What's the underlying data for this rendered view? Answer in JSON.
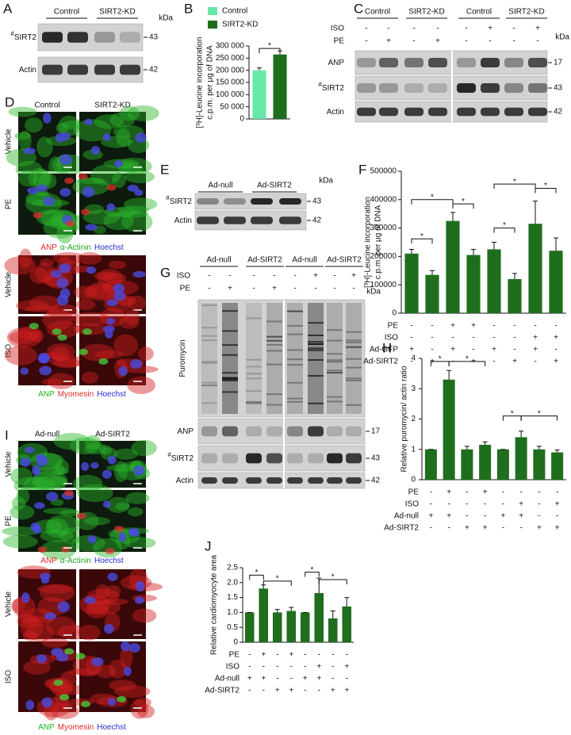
{
  "panel_A": {
    "letter": "A",
    "groups": [
      "Control",
      "SIRT2-KD"
    ],
    "unit": "kDa",
    "rows": [
      {
        "sup": "#",
        "label": "SIRT2",
        "mw": "43"
      },
      {
        "label": "Actin",
        "mw": "42"
      }
    ]
  },
  "panel_C": {
    "letter": "C",
    "groups": [
      "Control",
      "SIRT2-KD",
      "Control",
      "SIRT2-KD"
    ],
    "unit": "kDa",
    "treatments": [
      {
        "label": "ISO",
        "marks": [
          "-",
          "-",
          "-",
          "-",
          "-",
          "+",
          "-",
          "+"
        ]
      },
      {
        "label": "PE",
        "marks": [
          "-",
          "+",
          "-",
          "+",
          "-",
          "-",
          "-",
          "-"
        ]
      }
    ],
    "rows": [
      {
        "label": "ANP",
        "mw": "17"
      },
      {
        "sup": "#",
        "label": "SIRT2",
        "mw": "43"
      },
      {
        "label": "Actin",
        "mw": "42"
      }
    ]
  },
  "panel_D": {
    "letter": "D",
    "columns": [
      "Control",
      "SIRT2-KD"
    ],
    "rows": [
      "Vehicle",
      "PE",
      "Vehicle",
      "ISO"
    ],
    "stains": [
      [
        {
          "text": "ANP",
          "color": "#e02828"
        },
        {
          "text": "α-Actinin",
          "color": "#1fa81f"
        },
        {
          "text": "Hoechst",
          "color": "#2b2bd0"
        }
      ],
      [
        {
          "text": "ANP",
          "color": "#1fb81f"
        },
        {
          "text": "Myomesin",
          "color": "#e02828"
        },
        {
          "text": "Hoechst",
          "color": "#2b2bd0"
        }
      ]
    ]
  },
  "panel_E": {
    "letter": "E",
    "groups": [
      "Ad-null",
      "Ad-SIRT2"
    ],
    "unit": "kDa",
    "rows": [
      {
        "sup": "#",
        "label": "SIRT2",
        "mw": "43"
      },
      {
        "label": "Actin",
        "mw": "42"
      }
    ]
  },
  "panel_G": {
    "letter": "G",
    "groups": [
      "Ad-null",
      "Ad-SIRT2",
      "Ad-null",
      "Ad-SIRT2"
    ],
    "unit": "kDa",
    "treatments": [
      {
        "label": "ISO",
        "marks": [
          "-",
          "-",
          "-",
          "-",
          "-",
          "+",
          "-",
          "+"
        ]
      },
      {
        "label": "PE",
        "marks": [
          "-",
          "+",
          "-",
          "+",
          "-",
          "-",
          "-",
          "-"
        ]
      }
    ],
    "rows": [
      {
        "label": "Puromycin"
      },
      {
        "label": "ANP",
        "mw": "17"
      },
      {
        "sup": "#",
        "label": "SIRT2",
        "mw": "43"
      },
      {
        "label": "Actin",
        "mw": "42"
      }
    ]
  },
  "panel_I": {
    "letter": "I",
    "columns": [
      "Ad-null",
      "Ad-SIRT2"
    ],
    "rows": [
      "Vehicle",
      "PE",
      "Vehicle",
      "ISO"
    ],
    "stains": [
      [
        {
          "text": "ANP",
          "color": "#e02828"
        },
        {
          "text": "α-Actinin",
          "color": "#1fa81f"
        },
        {
          "text": "Hoechst",
          "color": "#2b2bd0"
        }
      ],
      [
        {
          "text": "ANP",
          "color": "#1fb81f"
        },
        {
          "text": "Myomesin",
          "color": "#e02828"
        },
        {
          "text": "Hoechst",
          "color": "#2b2bd0"
        }
      ]
    ]
  },
  "chart_data": [
    {
      "type": "bar",
      "panel": "B",
      "ylabel": [
        "[³H]-Leucine incorporation",
        "c.p.m. per μg of DNA"
      ],
      "series": [
        {
          "name": "Control",
          "color": "#66e8a8",
          "values": [
            200000
          ],
          "errors": [
            10000
          ]
        },
        {
          "name": "SIRT2-KD",
          "color": "#1e6e1e",
          "values": [
            265000
          ],
          "errors": [
            15000
          ]
        }
      ],
      "ylim": [
        0,
        300000
      ],
      "yticks": [
        0,
        {
          "value": 50000,
          "label": "50 000"
        },
        {
          "value": 100000,
          "label": "100 000"
        },
        {
          "value": 150000,
          "label": "150 000"
        },
        {
          "value": 200000,
          "label": "200 000"
        },
        {
          "value": 250000,
          "label": "250 000"
        },
        {
          "value": 300000,
          "label": "300 000"
        }
      ],
      "annotations": [
        "*"
      ]
    },
    {
      "type": "bar",
      "panel": "F",
      "ylabel": [
        "[³H]-Leucine incorporation",
        "c.p.m. per μg of DNA"
      ],
      "color": "#1e6e1e",
      "values": [
        210000,
        135000,
        325000,
        205000,
        225000,
        120000,
        315000,
        220000
      ],
      "errors": [
        15000,
        15000,
        30000,
        20000,
        25000,
        20000,
        80000,
        45000
      ],
      "ylim": [
        0,
        500000
      ],
      "yticks": [
        0,
        100000,
        200000,
        300000,
        400000,
        500000
      ],
      "conditions": [
        {
          "label": "PE",
          "marks": [
            "-",
            "-",
            "+",
            "+",
            "-",
            "-",
            "-",
            "-"
          ]
        },
        {
          "label": "ISO",
          "marks": [
            "-",
            "-",
            "-",
            "-",
            "-",
            "-",
            "+",
            "+"
          ]
        },
        {
          "label": "Ad-GFP",
          "marks": [
            "+",
            "-",
            "+",
            "-",
            "+",
            "-",
            "+",
            "-"
          ]
        },
        {
          "label": "Ad-SIRT2",
          "marks": [
            "-",
            "+",
            "-",
            "+",
            "-",
            "+",
            "-",
            "+"
          ]
        }
      ],
      "annotations": [
        "*",
        "*",
        "*",
        "*",
        "*",
        "*"
      ]
    },
    {
      "type": "bar",
      "panel": "H",
      "ylabel": "Relative puromycin/ actin ratio",
      "color": "#1e6e1e",
      "values": [
        1,
        3.3,
        1.0,
        1.15,
        1.0,
        1.4,
        1.0,
        0.9
      ],
      "errors": [
        0,
        0.3,
        0.1,
        0.1,
        0,
        0.2,
        0.1,
        0.08
      ],
      "ylim": [
        0,
        4
      ],
      "yticks": [
        0,
        1,
        2,
        3,
        4
      ],
      "conditions": [
        {
          "label": "PE",
          "marks": [
            "-",
            "+",
            "-",
            "+",
            "-",
            "-",
            "-",
            "-"
          ]
        },
        {
          "label": "ISO",
          "marks": [
            "-",
            "-",
            "-",
            "-",
            "-",
            "+",
            "-",
            "+"
          ]
        },
        {
          "label": "Ad-null",
          "marks": [
            "+",
            "+",
            "-",
            "-",
            "+",
            "+",
            "-",
            "-"
          ]
        },
        {
          "label": "Ad-SIRT2",
          "marks": [
            "-",
            "-",
            "+",
            "+",
            "-",
            "-",
            "+",
            "+"
          ]
        }
      ],
      "annotations": [
        "*",
        "*",
        "*",
        "*"
      ]
    },
    {
      "type": "bar",
      "panel": "J",
      "ylabel": "Relative cardiomyocyte area",
      "color": "#1e6e1e",
      "values": [
        1,
        1.8,
        1.0,
        1.05,
        1.0,
        1.65,
        0.8,
        1.2
      ],
      "errors": [
        0,
        0.12,
        0.1,
        0.12,
        0,
        0.5,
        0.25,
        0.3
      ],
      "ylim": [
        0,
        2.5
      ],
      "yticks": [
        0,
        0.5,
        {
          "value": 1,
          "label": "1.0"
        },
        1.5,
        {
          "value": 2,
          "label": "2.0"
        },
        2.5
      ],
      "conditions": [
        {
          "label": "PE",
          "marks": [
            "-",
            "+",
            "-",
            "+",
            "-",
            "-",
            "-",
            "-"
          ]
        },
        {
          "label": "ISO",
          "marks": [
            "-",
            "-",
            "-",
            "-",
            "-",
            "+",
            "-",
            "+"
          ]
        },
        {
          "label": "Ad-null",
          "marks": [
            "+",
            "+",
            "-",
            "-",
            "+",
            "+",
            "-",
            "-"
          ]
        },
        {
          "label": "Ad-SIRT2",
          "marks": [
            "-",
            "-",
            "+",
            "+",
            "-",
            "-",
            "+",
            "+"
          ]
        }
      ],
      "annotations": [
        "*",
        "*",
        "*",
        "*"
      ]
    }
  ]
}
